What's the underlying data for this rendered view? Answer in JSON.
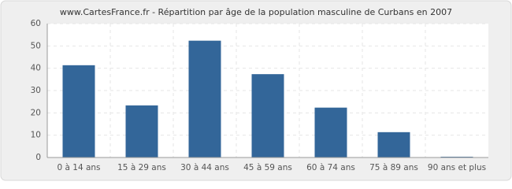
{
  "chart_data": {
    "type": "bar",
    "title": "www.CartesFrance.fr - Répartition par âge de la population masculine de Curbans en 2007",
    "categories": [
      "0 à 14 ans",
      "15 à 29 ans",
      "30 à 44 ans",
      "45 à 59 ans",
      "60 à 74 ans",
      "75 à 89 ans",
      "90 ans et plus"
    ],
    "values": [
      41,
      23,
      52,
      37,
      22,
      11,
      0
    ],
    "color": "#336699",
    "ylim": [
      0,
      60
    ],
    "yticks": [
      0,
      10,
      20,
      30,
      40,
      50,
      60
    ],
    "grid": true
  }
}
